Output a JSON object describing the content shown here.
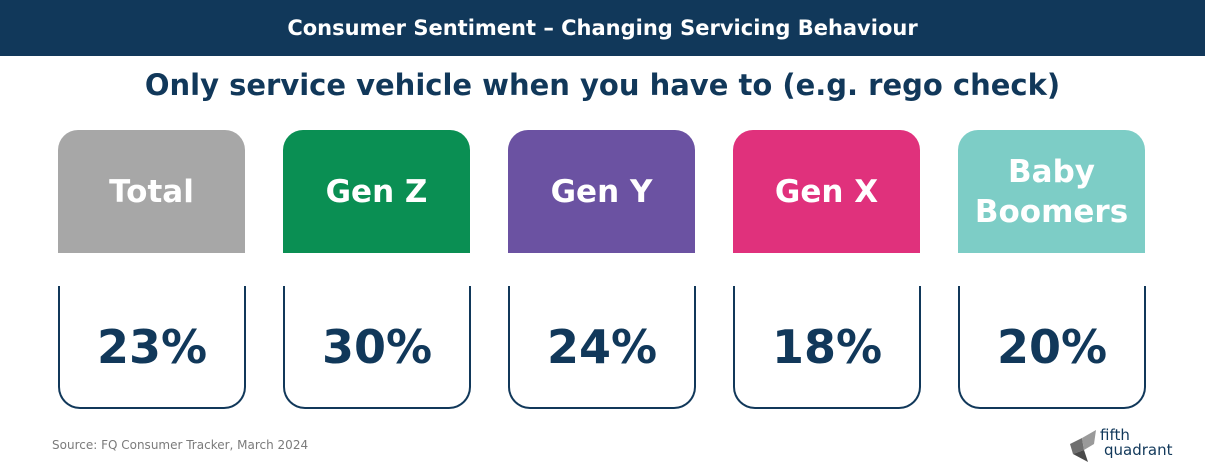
{
  "header": {
    "title": "Consumer Sentiment – Changing Servicing Behaviour"
  },
  "subtitle": "Only service vehicle when you have to (e.g. rego check)",
  "cards": [
    {
      "label": "Total",
      "value": "23%",
      "color": "#a7a7a7"
    },
    {
      "label": "Gen Z",
      "value": "30%",
      "color": "#0a8f53"
    },
    {
      "label": "Gen Y",
      "value": "24%",
      "color": "#6b52a2"
    },
    {
      "label": "Gen X",
      "value": "18%",
      "color": "#e0317c"
    },
    {
      "label": "Baby Boomers",
      "value": "20%",
      "color": "#7dcdc6"
    }
  ],
  "footer": {
    "source": "Source: FQ Consumer Tracker, March 2024",
    "logo_line1": "fifth",
    "logo_line2": "quadrant"
  },
  "colors": {
    "navy": "#11385a"
  }
}
